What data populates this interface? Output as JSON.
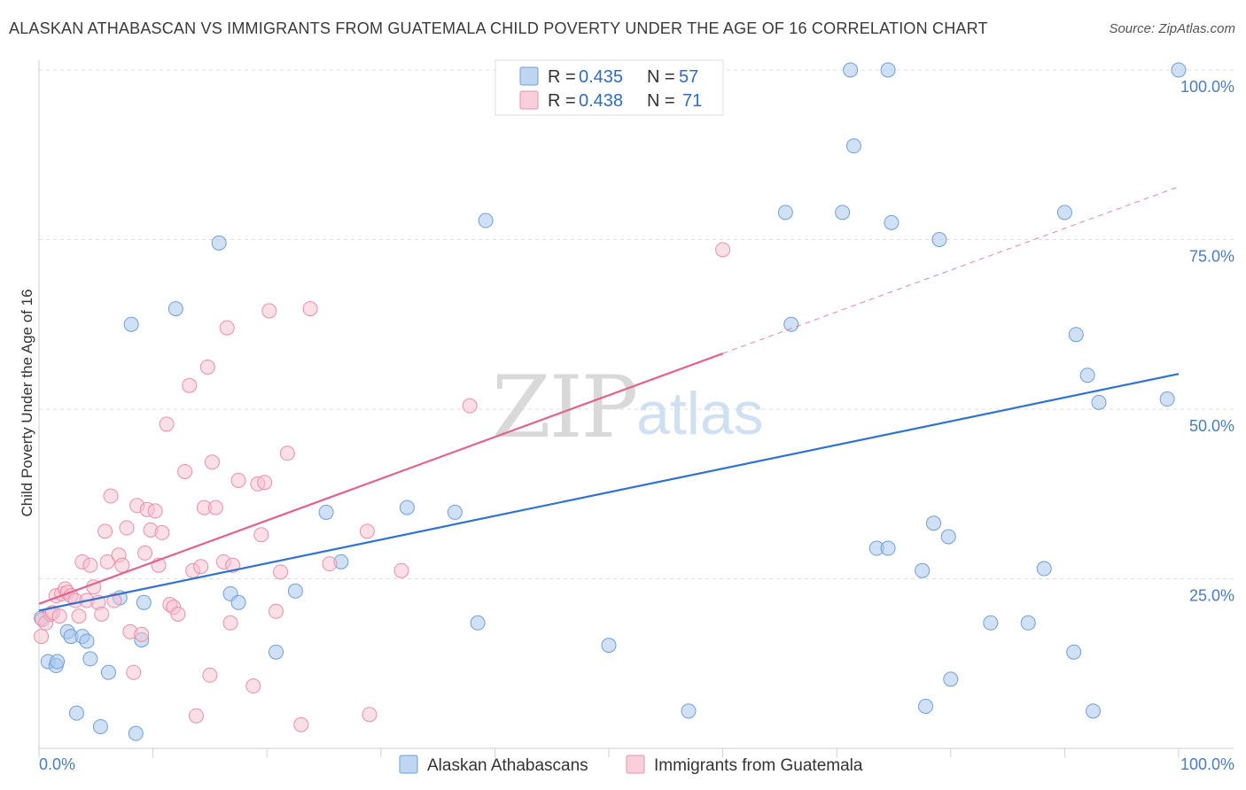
{
  "title": "ALASKAN ATHABASCAN VS IMMIGRANTS FROM GUATEMALA CHILD POVERTY UNDER THE AGE OF 16 CORRELATION CHART",
  "source": "Source: ZipAtlas.com",
  "watermark": {
    "zip": "ZIP",
    "atlas": "atlas"
  },
  "chart_data": {
    "type": "scatter",
    "title": "ALASKAN ATHABASCAN VS IMMIGRANTS FROM GUATEMALA CHILD POVERTY UNDER THE AGE OF 16 CORRELATION CHART",
    "xlabel": "",
    "ylabel": "Child Poverty Under the Age of 16",
    "xlim": [
      0,
      100
    ],
    "ylim": [
      0,
      100
    ],
    "x_tick_labels": [
      "0.0%",
      "100.0%"
    ],
    "y_tick_labels": [
      "25.0%",
      "50.0%",
      "75.0%",
      "100.0%"
    ],
    "y_ticks": [
      25,
      50,
      75,
      100
    ],
    "grid": "horizontal dashed",
    "legend_top": [
      {
        "r_label": "R =",
        "r": "0.435",
        "n_label": "N =",
        "n": "57"
      },
      {
        "r_label": "R =",
        "r": "0.438",
        "n_label": "N =",
        "n": "71"
      }
    ],
    "series": [
      {
        "name": "Alaskan Athabascans",
        "color": "#a9c8ee",
        "stroke": "#6f9fd8",
        "line_color": "#2f73d0",
        "trend": {
          "x": [
            0,
            100
          ],
          "y": [
            20.3,
            55.2
          ]
        },
        "points": [
          [
            0.2,
            19.2
          ],
          [
            0.8,
            12.8
          ],
          [
            1.5,
            12.2
          ],
          [
            1.6,
            12.8
          ],
          [
            2.5,
            17.2
          ],
          [
            2.8,
            16.5
          ],
          [
            3.3,
            5.2
          ],
          [
            3.8,
            16.5
          ],
          [
            4.2,
            15.8
          ],
          [
            4.5,
            13.2
          ],
          [
            5.4,
            3.2
          ],
          [
            6.1,
            11.2
          ],
          [
            7.1,
            22.2
          ],
          [
            8.1,
            62.5
          ],
          [
            8.5,
            2.2
          ],
          [
            9.0,
            16.0
          ],
          [
            9.2,
            21.5
          ],
          [
            12.0,
            64.8
          ],
          [
            15.8,
            74.5
          ],
          [
            16.8,
            22.8
          ],
          [
            17.5,
            21.5
          ],
          [
            20.8,
            14.2
          ],
          [
            22.5,
            23.2
          ],
          [
            25.2,
            34.8
          ],
          [
            26.5,
            27.5
          ],
          [
            32.3,
            35.5
          ],
          [
            36.5,
            34.8
          ],
          [
            38.5,
            18.5
          ],
          [
            39.2,
            77.8
          ],
          [
            50.0,
            15.2
          ],
          [
            57.0,
            5.5
          ],
          [
            65.5,
            79.0
          ],
          [
            66.0,
            62.5
          ],
          [
            70.5,
            79.0
          ],
          [
            71.2,
            100.0
          ],
          [
            71.5,
            88.8
          ],
          [
            73.5,
            29.5
          ],
          [
            74.5,
            29.5
          ],
          [
            74.8,
            77.5
          ],
          [
            74.5,
            100.0
          ],
          [
            77.5,
            26.2
          ],
          [
            77.8,
            6.2
          ],
          [
            78.5,
            33.2
          ],
          [
            79.0,
            75.0
          ],
          [
            79.8,
            31.2
          ],
          [
            80.0,
            10.2
          ],
          [
            83.5,
            18.5
          ],
          [
            86.8,
            18.5
          ],
          [
            88.2,
            26.5
          ],
          [
            90.0,
            79.0
          ],
          [
            90.8,
            14.2
          ],
          [
            91.0,
            61.0
          ],
          [
            92.0,
            55.0
          ],
          [
            92.5,
            5.5
          ],
          [
            93.0,
            51.0
          ],
          [
            99.0,
            51.5
          ],
          [
            100.0,
            100.0
          ]
        ]
      },
      {
        "name": "Immigrants from Guatemala",
        "color": "#f7bfd0",
        "stroke": "#ea8fab",
        "line_color": "#e0648c",
        "trend": {
          "x": [
            0,
            60
          ],
          "y": [
            21.3,
            58.2
          ]
        },
        "dashed_extension": {
          "x": [
            60,
            100
          ],
          "y": [
            58.2,
            82.8
          ]
        },
        "points": [
          [
            0.2,
            16.5
          ],
          [
            0.3,
            19.0
          ],
          [
            0.6,
            18.5
          ],
          [
            1.0,
            19.8
          ],
          [
            1.2,
            20.0
          ],
          [
            1.5,
            22.5
          ],
          [
            1.8,
            19.5
          ],
          [
            2.0,
            22.8
          ],
          [
            2.3,
            23.5
          ],
          [
            2.5,
            23.0
          ],
          [
            2.8,
            22.5
          ],
          [
            3.2,
            21.8
          ],
          [
            3.5,
            19.5
          ],
          [
            3.8,
            27.5
          ],
          [
            4.2,
            21.8
          ],
          [
            4.5,
            27.0
          ],
          [
            4.8,
            23.8
          ],
          [
            5.2,
            21.5
          ],
          [
            5.5,
            19.8
          ],
          [
            5.8,
            32.0
          ],
          [
            6.0,
            27.5
          ],
          [
            6.3,
            37.2
          ],
          [
            6.6,
            21.8
          ],
          [
            7.0,
            28.5
          ],
          [
            7.3,
            27.0
          ],
          [
            7.7,
            32.5
          ],
          [
            8.0,
            17.2
          ],
          [
            8.3,
            11.2
          ],
          [
            8.6,
            35.8
          ],
          [
            9.0,
            16.8
          ],
          [
            9.3,
            28.8
          ],
          [
            9.5,
            35.2
          ],
          [
            9.8,
            32.2
          ],
          [
            10.2,
            35.0
          ],
          [
            10.5,
            27.0
          ],
          [
            10.8,
            31.8
          ],
          [
            11.2,
            47.8
          ],
          [
            11.5,
            21.2
          ],
          [
            11.8,
            20.8
          ],
          [
            12.2,
            19.8
          ],
          [
            12.8,
            40.8
          ],
          [
            13.2,
            53.5
          ],
          [
            13.5,
            26.2
          ],
          [
            13.8,
            4.8
          ],
          [
            14.2,
            26.8
          ],
          [
            14.5,
            35.5
          ],
          [
            14.8,
            56.2
          ],
          [
            15.0,
            10.8
          ],
          [
            15.2,
            42.2
          ],
          [
            15.5,
            35.5
          ],
          [
            16.2,
            27.5
          ],
          [
            16.5,
            62.0
          ],
          [
            16.8,
            18.5
          ],
          [
            17.0,
            27.0
          ],
          [
            17.5,
            39.5
          ],
          [
            18.8,
            9.2
          ],
          [
            19.2,
            39.0
          ],
          [
            19.5,
            31.5
          ],
          [
            19.8,
            39.2
          ],
          [
            20.2,
            64.5
          ],
          [
            20.8,
            20.2
          ],
          [
            21.2,
            26.0
          ],
          [
            21.8,
            43.5
          ],
          [
            23.0,
            3.5
          ],
          [
            23.8,
            64.8
          ],
          [
            25.5,
            27.2
          ],
          [
            28.8,
            32.0
          ],
          [
            29.0,
            5.0
          ],
          [
            31.8,
            26.2
          ],
          [
            37.8,
            50.5
          ],
          [
            60.0,
            73.5
          ]
        ]
      }
    ]
  }
}
